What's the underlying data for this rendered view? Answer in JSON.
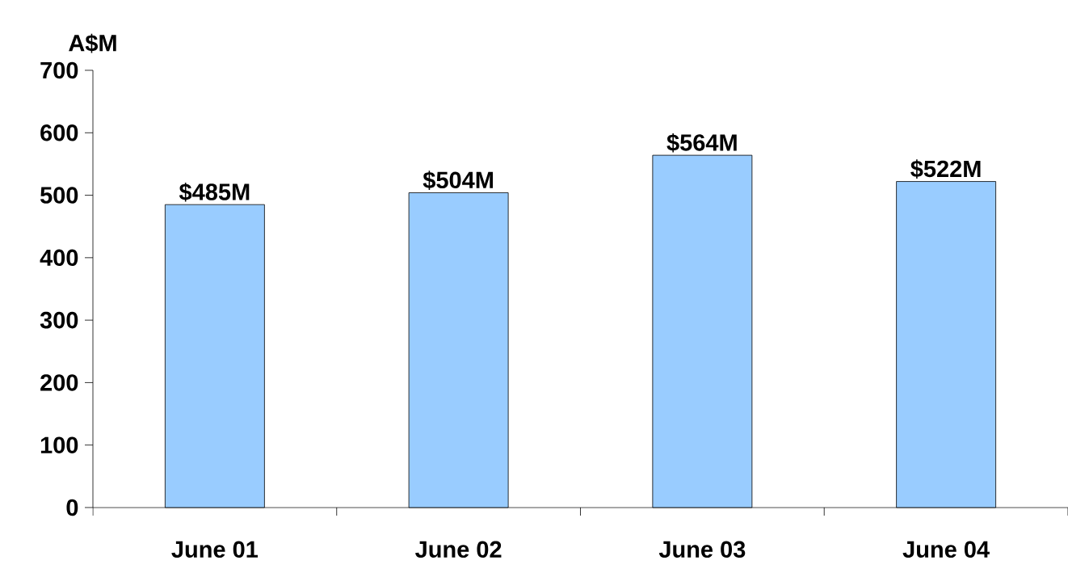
{
  "chart_data": {
    "type": "bar",
    "ylabel": "A$M",
    "categories": [
      "June 01",
      "June 02",
      "June 03",
      "June 04"
    ],
    "values": [
      485,
      504,
      564,
      522
    ],
    "value_labels": [
      "$485M",
      "$504M",
      "$564M",
      "$522M"
    ],
    "color": "#99ccff",
    "ylim": [
      0,
      700
    ],
    "yticks": [
      0,
      100,
      200,
      300,
      400,
      500,
      600,
      700
    ],
    "grid": false
  }
}
